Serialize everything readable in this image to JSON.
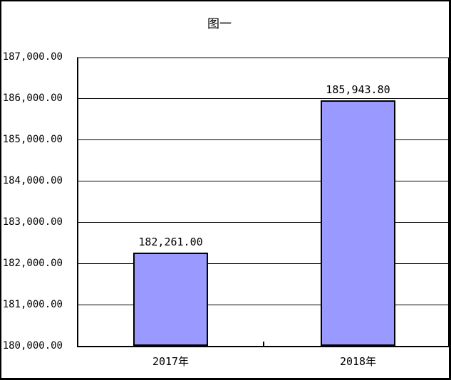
{
  "window": {
    "background_color": "#FFFFFF",
    "border_color": "#000000"
  },
  "chart_data": {
    "type": "bar",
    "title": "图一",
    "categories": [
      "2017年",
      "2018年"
    ],
    "values": [
      182261.0,
      185943.8
    ],
    "value_labels": [
      "182,261.00",
      "185,943.80"
    ],
    "y_tick_labels": [
      "180,000.00",
      "181,000.00",
      "182,000.00",
      "183,000.00",
      "184,000.00",
      "185,000.00",
      "186,000.00",
      "187,000.00"
    ],
    "ylim": [
      180000,
      187000
    ],
    "y_tick_step": 1000,
    "xlabel": "",
    "ylabel": "",
    "grid": true,
    "legend": "none",
    "bar_fill_color": "#9999FF",
    "bar_border_color": "#000000",
    "gridline_color": "#000000",
    "plot_top_border_color": "#848484",
    "text_color": "#000000"
  }
}
